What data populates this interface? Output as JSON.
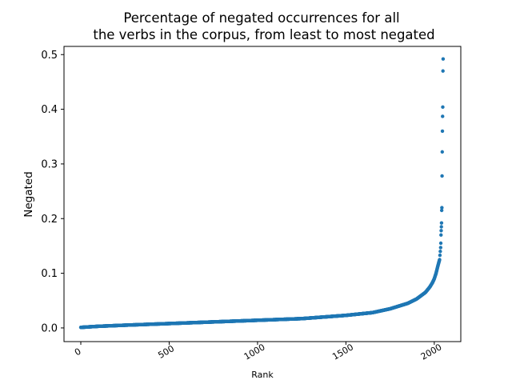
{
  "chart_data": {
    "type": "scatter",
    "title_lines": [
      "Percentage of negated occurrences for all",
      "the verbs in the corpus, from least to most negated"
    ],
    "xlabel": "Rank",
    "ylabel": "Negated",
    "xlim": [
      -95,
      2150
    ],
    "ylim": [
      -0.025,
      0.515
    ],
    "xticks": [
      0,
      500,
      1000,
      1500,
      2000
    ],
    "xtick_labels": [
      "0",
      "500",
      "1000",
      "1500",
      "2000"
    ],
    "yticks": [
      0.0,
      0.1,
      0.2,
      0.3,
      0.4,
      0.5
    ],
    "ytick_labels": [
      "0.0",
      "0.1",
      "0.2",
      "0.3",
      "0.4",
      "0.5"
    ],
    "grid": false,
    "marker_color": "#1f77b4",
    "n_points": 2050,
    "curve_anchors": {
      "x": [
        0,
        100,
        250,
        500,
        750,
        1000,
        1250,
        1500,
        1650,
        1750,
        1850,
        1900,
        1950,
        1975,
        1990,
        2000,
        2010,
        2020,
        2030
      ],
      "y": [
        0.001,
        0.003,
        0.005,
        0.008,
        0.011,
        0.014,
        0.017,
        0.023,
        0.028,
        0.035,
        0.045,
        0.053,
        0.065,
        0.075,
        0.083,
        0.09,
        0.1,
        0.113,
        0.125
      ]
    },
    "outliers": {
      "x": [
        2032,
        2034,
        2036,
        2037,
        2038,
        2039,
        2040,
        2041,
        2042,
        2043,
        2044,
        2045,
        2046,
        2047,
        2048,
        2049
      ],
      "y": [
        0.133,
        0.14,
        0.147,
        0.155,
        0.17,
        0.178,
        0.185,
        0.192,
        0.215,
        0.22,
        0.278,
        0.322,
        0.36,
        0.387,
        0.404,
        0.47
      ]
    },
    "max_point": {
      "x": 2050,
      "y": 0.492
    }
  }
}
